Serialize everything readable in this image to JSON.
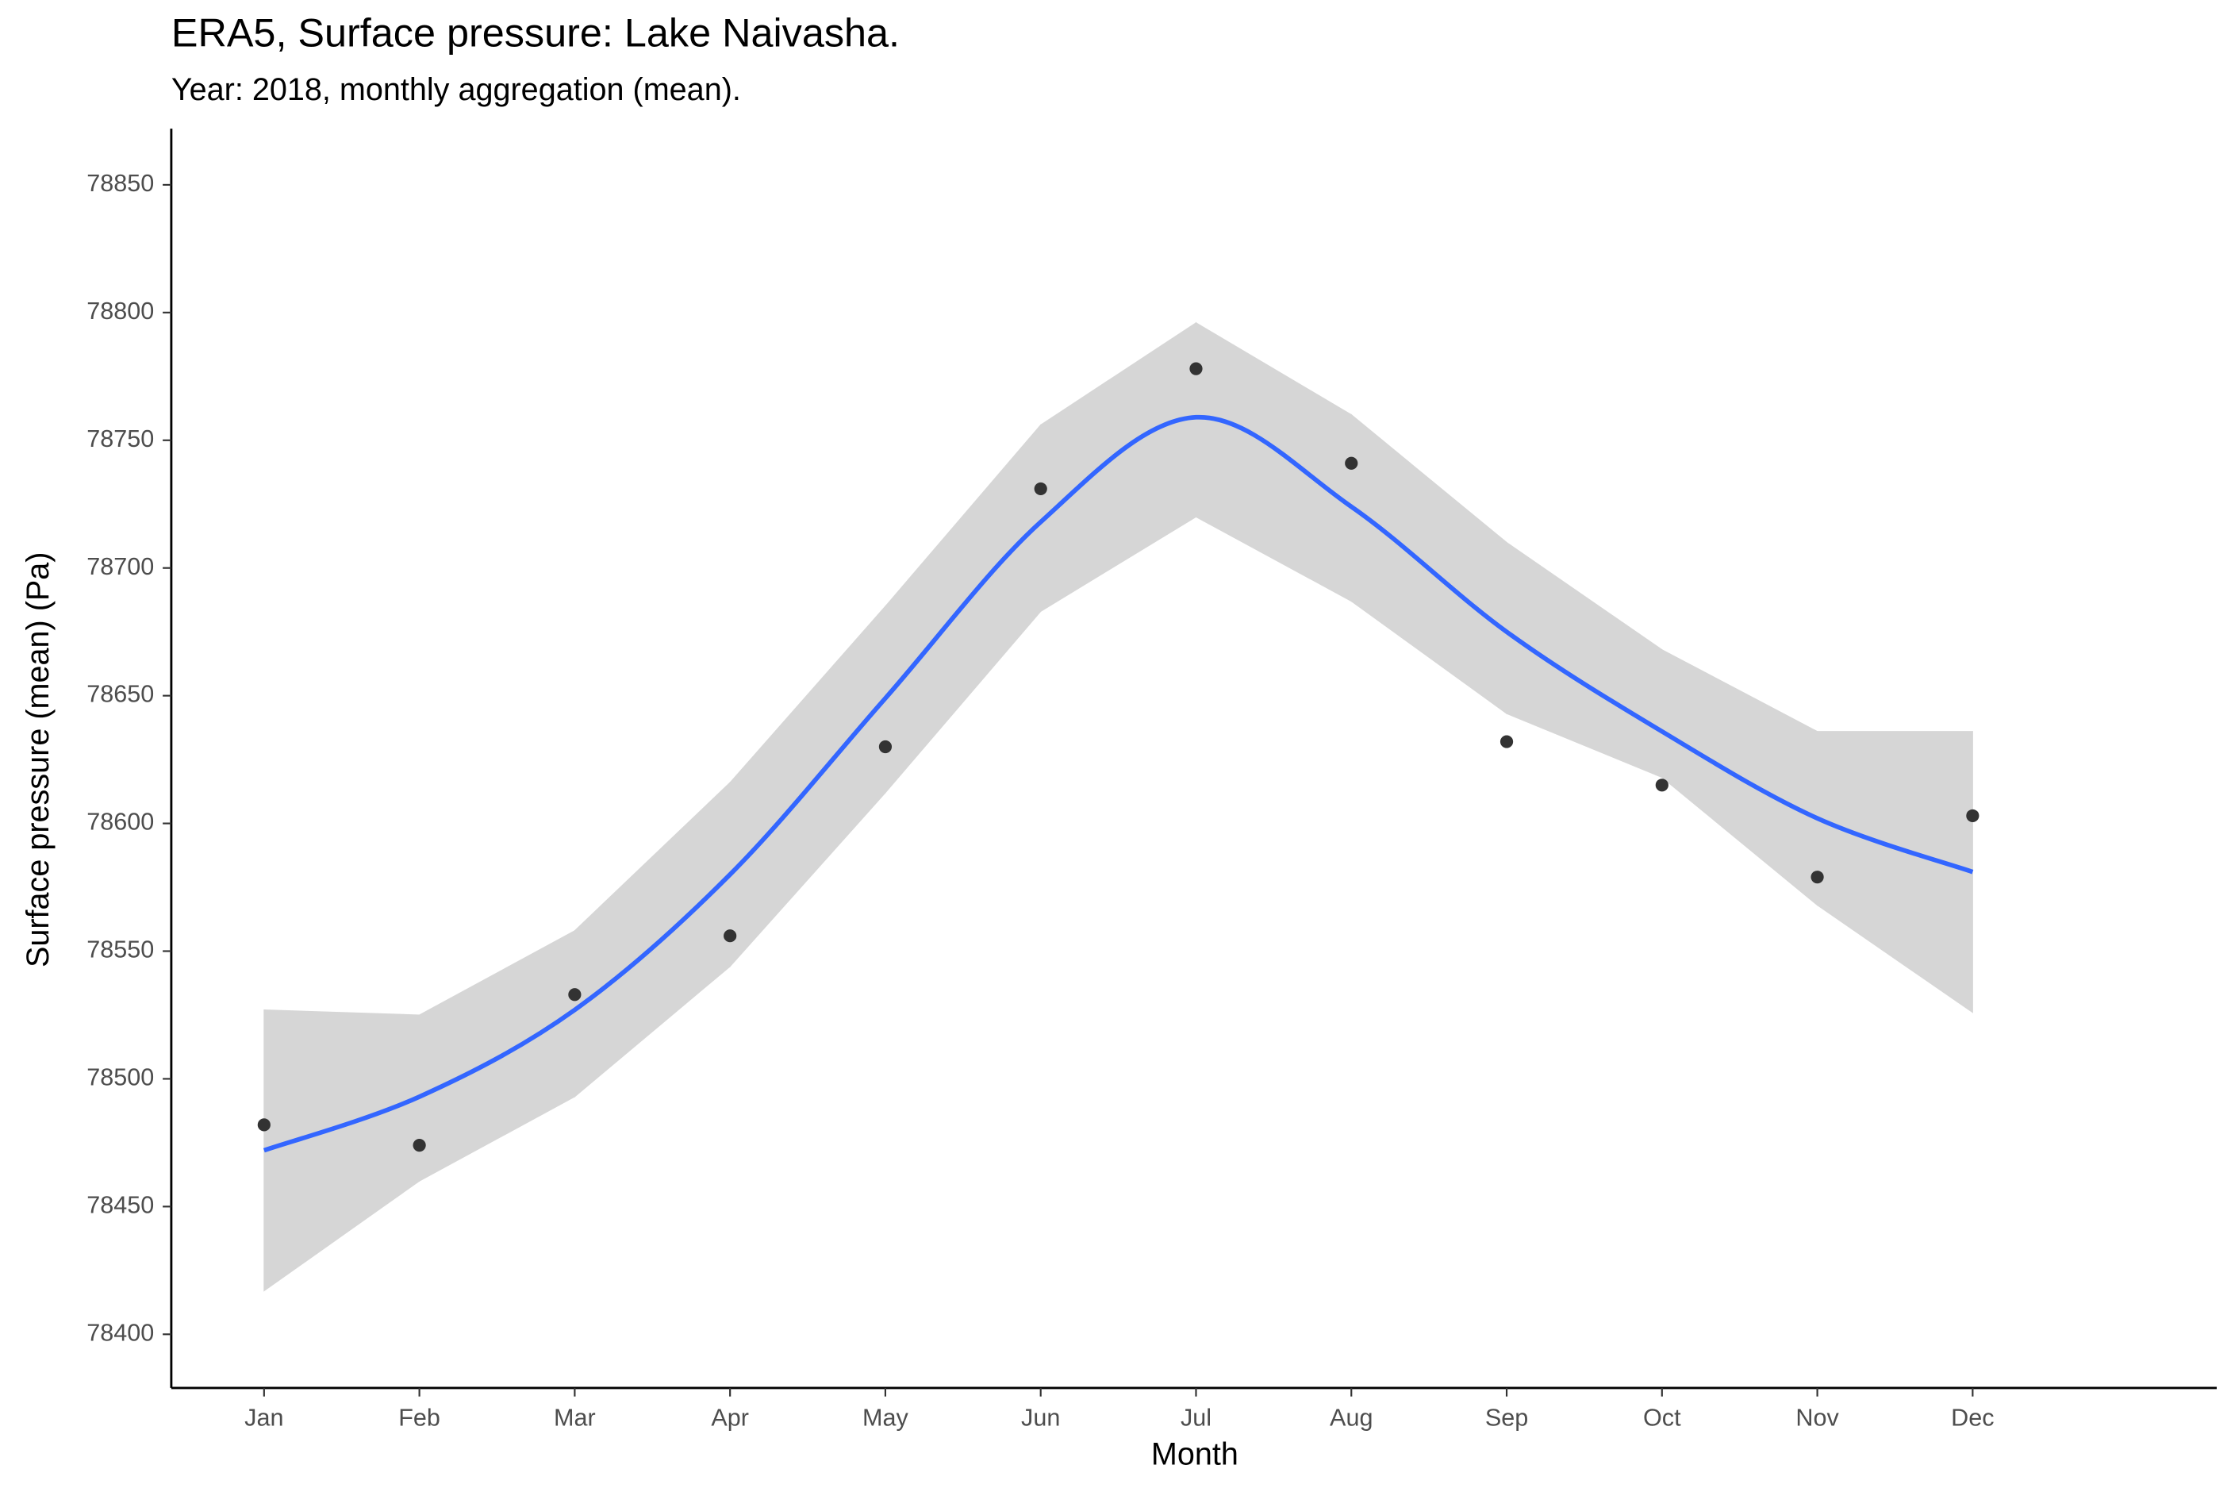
{
  "chart_data": {
    "type": "scatter-smooth",
    "title": "ERA5, Surface pressure: Lake Naivasha.",
    "subtitle": "Year: 2018, monthly aggregation (mean).",
    "x_label": "Month",
    "y_label": "Surface pressure (mean) (Pa)",
    "categories": [
      "Jan",
      "Feb",
      "Mar",
      "Apr",
      "May",
      "Jun",
      "Jul",
      "Aug",
      "Sep",
      "Oct",
      "Nov",
      "Dec"
    ],
    "values": [
      78482,
      78474,
      78533,
      78556,
      78630,
      78731,
      78778,
      78741,
      78632,
      78615,
      78579,
      78603
    ],
    "fit": [
      78472,
      78493,
      78527,
      78580,
      78649,
      78718,
      78759,
      78724,
      78675,
      78636,
      78602,
      78581
    ],
    "fit_upper": [
      78527,
      78525,
      78558,
      78616,
      78685,
      78756,
      78796,
      78760,
      78710,
      78668,
      78636,
      78636
    ],
    "fit_lower": [
      78417,
      78460,
      78493,
      78544,
      78612,
      78683,
      78720,
      78687,
      78643,
      78618,
      78568,
      78526
    ],
    "point_color": "#333333",
    "line_color": "#3366ff",
    "band_color": "#d6d6d6",
    "ylim": [
      78379,
      78872
    ],
    "yticks": [
      78400,
      78450,
      78500,
      78550,
      78600,
      78650,
      78700,
      78750,
      78800,
      78850
    ],
    "grid": false
  }
}
